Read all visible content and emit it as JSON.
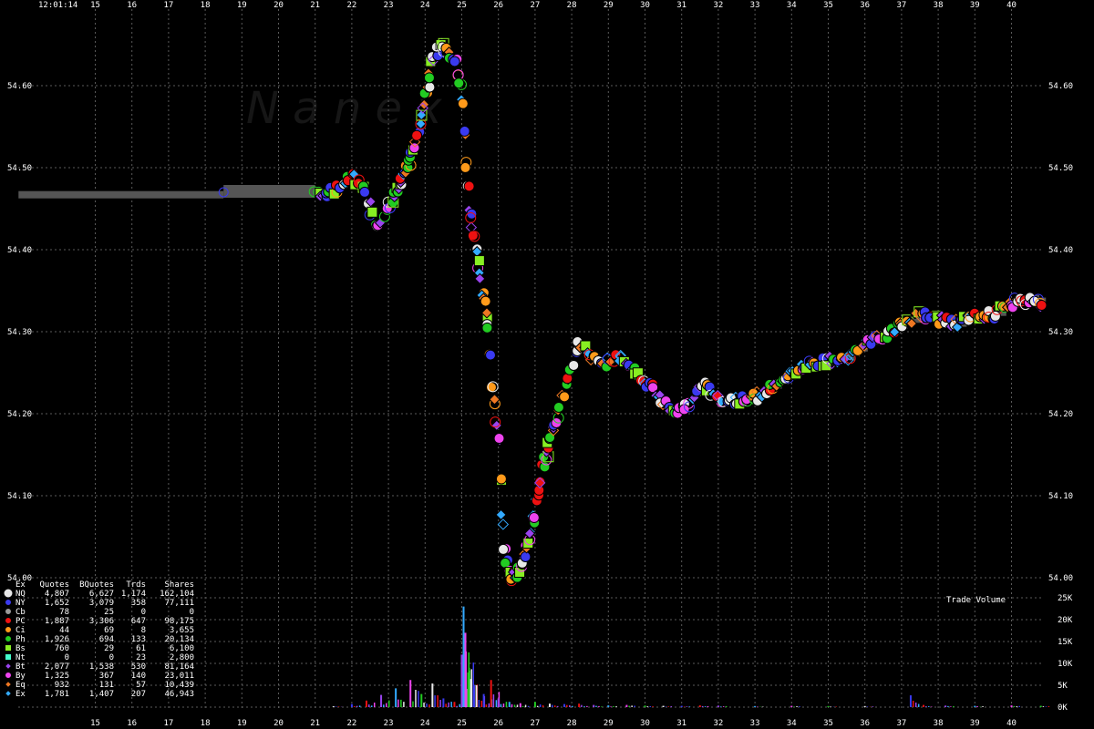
{
  "chart_data": {
    "type": "scatter",
    "time_label": "12:01:14",
    "watermark": "N a n e x",
    "x_ticks": [
      "15",
      "16",
      "17",
      "18",
      "19",
      "20",
      "21",
      "22",
      "23",
      "24",
      "25",
      "26",
      "27",
      "28",
      "29",
      "30",
      "31",
      "32",
      "33",
      "34",
      "35",
      "36",
      "37",
      "38",
      "39",
      "40"
    ],
    "xlim": [
      14.0,
      41.5
    ],
    "price_axis": {
      "ylim": [
        54.0,
        54.66
      ],
      "ticks": [
        54.6,
        54.5,
        54.4,
        54.3,
        54.2,
        54.1,
        54.0
      ],
      "tick_labels": [
        "54.60",
        "54.50",
        "54.40",
        "54.30",
        "54.20",
        "54.10",
        "54.00"
      ]
    },
    "volume_axis": {
      "label": "Trade Volume",
      "ylim": [
        0,
        25000
      ],
      "ticks": [
        25000,
        20000,
        15000,
        10000,
        5000,
        0
      ],
      "tick_labels": [
        "25K",
        "20K",
        "15K",
        "10K",
        "5K",
        "0K"
      ]
    },
    "grid": true,
    "legend": {
      "position": "bottom-left",
      "headers": [
        "Ex",
        "Quotes",
        "BQuotes",
        "Trds",
        "Shares"
      ],
      "rows": [
        {
          "ex": "NQ",
          "quotes": "4,807",
          "bquotes": "6,627",
          "trds": "1,174",
          "shares": "162,104",
          "color": "#e8e8e8",
          "marker": "circle"
        },
        {
          "ex": "NY",
          "quotes": "1,652",
          "bquotes": "3,079",
          "trds": "358",
          "shares": "77,111",
          "color": "#3a3af0",
          "marker": "circle"
        },
        {
          "ex": "Cb",
          "quotes": "78",
          "bquotes": "25",
          "trds": "0",
          "shares": "0",
          "color": "#9a9a9a",
          "marker": "circle"
        },
        {
          "ex": "PC",
          "quotes": "1,887",
          "bquotes": "3,306",
          "trds": "647",
          "shares": "98,175",
          "color": "#ee1111",
          "marker": "circle"
        },
        {
          "ex": "Ci",
          "quotes": "44",
          "bquotes": "69",
          "trds": "8",
          "shares": "3,655",
          "color": "#ff9a1a",
          "marker": "circle"
        },
        {
          "ex": "Ph",
          "quotes": "1,926",
          "bquotes": "694",
          "trds": "133",
          "shares": "20,134",
          "color": "#22cc22",
          "marker": "circle"
        },
        {
          "ex": "Bs",
          "quotes": "760",
          "bquotes": "29",
          "trds": "61",
          "shares": "6,100",
          "color": "#88ee22",
          "marker": "square"
        },
        {
          "ex": "Nt",
          "quotes": "0",
          "bquotes": "0",
          "trds": "23",
          "shares": "2,800",
          "color": "#44ffcc",
          "marker": "square"
        },
        {
          "ex": "Bt",
          "quotes": "2,077",
          "bquotes": "1,538",
          "trds": "530",
          "shares": "81,164",
          "color": "#9944ee",
          "marker": "diamond"
        },
        {
          "ex": "By",
          "quotes": "1,325",
          "bquotes": "367",
          "trds": "140",
          "shares": "23,011",
          "color": "#ee44ee",
          "marker": "circle"
        },
        {
          "ex": "Eq",
          "quotes": "932",
          "bquotes": "131",
          "trds": "57",
          "shares": "10,439",
          "color": "#ee7722",
          "marker": "diamond"
        },
        {
          "ex": "Ex",
          "quotes": "1,781",
          "bquotes": "1,407",
          "trds": "207",
          "shares": "46,943",
          "color": "#33aaff",
          "marker": "diamond"
        }
      ]
    },
    "price_path": [
      [
        14.0,
        54.467
      ],
      [
        18.5,
        54.467
      ],
      [
        21.0,
        54.47
      ],
      [
        21.5,
        54.47
      ],
      [
        22.0,
        54.49
      ],
      [
        22.3,
        54.475
      ],
      [
        22.7,
        54.43
      ],
      [
        23.0,
        54.45
      ],
      [
        23.3,
        54.48
      ],
      [
        23.6,
        54.51
      ],
      [
        23.8,
        54.54
      ],
      [
        24.0,
        54.58
      ],
      [
        24.2,
        54.63
      ],
      [
        24.4,
        54.655
      ],
      [
        24.6,
        54.64
      ],
      [
        24.85,
        54.63
      ],
      [
        25.0,
        54.59
      ],
      [
        25.1,
        54.52
      ],
      [
        25.2,
        54.46
      ],
      [
        25.4,
        54.4
      ],
      [
        25.6,
        54.34
      ],
      [
        25.75,
        54.3
      ],
      [
        25.85,
        54.23
      ],
      [
        26.0,
        54.17
      ],
      [
        26.1,
        54.08
      ],
      [
        26.2,
        54.02
      ],
      [
        26.4,
        54.0
      ],
      [
        26.6,
        54.01
      ],
      [
        26.8,
        54.04
      ],
      [
        27.0,
        54.08
      ],
      [
        27.2,
        54.13
      ],
      [
        27.5,
        54.18
      ],
      [
        27.7,
        54.22
      ],
      [
        28.0,
        54.25
      ],
      [
        28.2,
        54.29
      ],
      [
        28.5,
        54.27
      ],
      [
        28.8,
        54.26
      ],
      [
        29.0,
        54.265
      ],
      [
        29.3,
        54.27
      ],
      [
        29.6,
        54.26
      ],
      [
        30.0,
        54.24
      ],
      [
        30.4,
        54.22
      ],
      [
        30.8,
        54.205
      ],
      [
        31.2,
        54.21
      ],
      [
        31.6,
        54.235
      ],
      [
        32.0,
        54.22
      ],
      [
        32.5,
        54.215
      ],
      [
        33.0,
        54.22
      ],
      [
        33.5,
        54.235
      ],
      [
        34.0,
        54.25
      ],
      [
        34.5,
        54.26
      ],
      [
        35.0,
        54.265
      ],
      [
        35.5,
        54.27
      ],
      [
        36.0,
        54.285
      ],
      [
        36.5,
        54.295
      ],
      [
        37.0,
        54.31
      ],
      [
        37.5,
        54.32
      ],
      [
        38.0,
        54.315
      ],
      [
        38.5,
        54.31
      ],
      [
        39.0,
        54.32
      ],
      [
        39.5,
        54.32
      ],
      [
        40.0,
        54.335
      ],
      [
        40.5,
        54.34
      ],
      [
        40.8,
        54.335
      ]
    ],
    "volume_bins": [
      [
        21.5,
        200
      ],
      [
        22.0,
        700
      ],
      [
        22.4,
        1500
      ],
      [
        22.8,
        2800
      ],
      [
        23.2,
        4300
      ],
      [
        23.6,
        6200
      ],
      [
        23.9,
        3000
      ],
      [
        24.2,
        5400
      ],
      [
        24.5,
        2000
      ],
      [
        24.8,
        1200
      ],
      [
        25.0,
        12000
      ],
      [
        25.05,
        23000
      ],
      [
        25.1,
        17000
      ],
      [
        25.2,
        9000
      ],
      [
        25.4,
        5000
      ],
      [
        25.6,
        3000
      ],
      [
        25.8,
        6200
      ],
      [
        26.0,
        2000
      ],
      [
        26.3,
        1200
      ],
      [
        26.6,
        900
      ],
      [
        27.0,
        1200
      ],
      [
        27.4,
        800
      ],
      [
        27.8,
        700
      ],
      [
        28.2,
        800
      ],
      [
        28.6,
        500
      ],
      [
        29.0,
        400
      ],
      [
        29.5,
        500
      ],
      [
        30.0,
        350
      ],
      [
        30.5,
        300
      ],
      [
        31.0,
        300
      ],
      [
        31.5,
        400
      ],
      [
        32.0,
        350
      ],
      [
        33.0,
        250
      ],
      [
        34.0,
        300
      ],
      [
        35.0,
        250
      ],
      [
        36.0,
        250
      ],
      [
        37.25,
        2700
      ],
      [
        37.6,
        500
      ],
      [
        38.2,
        350
      ],
      [
        39.0,
        300
      ],
      [
        40.0,
        400
      ],
      [
        40.8,
        300
      ]
    ]
  }
}
